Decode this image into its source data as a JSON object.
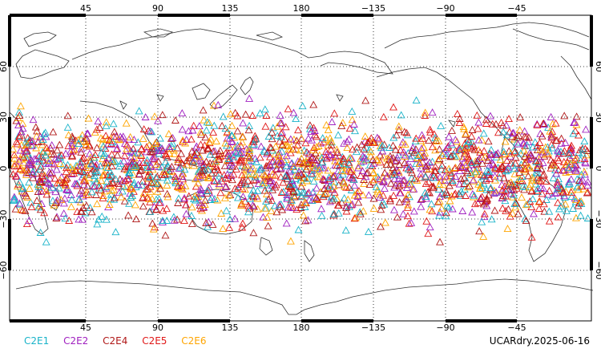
{
  "map": {
    "lon_labels": [
      "45",
      "90",
      "135",
      "180",
      "−135",
      "−90",
      "−45"
    ],
    "lat_labels": [
      "60",
      "30",
      "0",
      "−30",
      "−60"
    ],
    "point_marker": "open-triangle"
  },
  "legend": {
    "items": [
      {
        "label": "C2E1",
        "color": "#19b3c9"
      },
      {
        "label": "C2E2",
        "color": "#a020c0"
      },
      {
        "label": "C2E4",
        "color": "#b01818"
      },
      {
        "label": "C2E5",
        "color": "#e01818"
      },
      {
        "label": "C2E6",
        "color": "#ffa500"
      }
    ]
  },
  "source_label": "UCARdry.2025-06-16"
}
